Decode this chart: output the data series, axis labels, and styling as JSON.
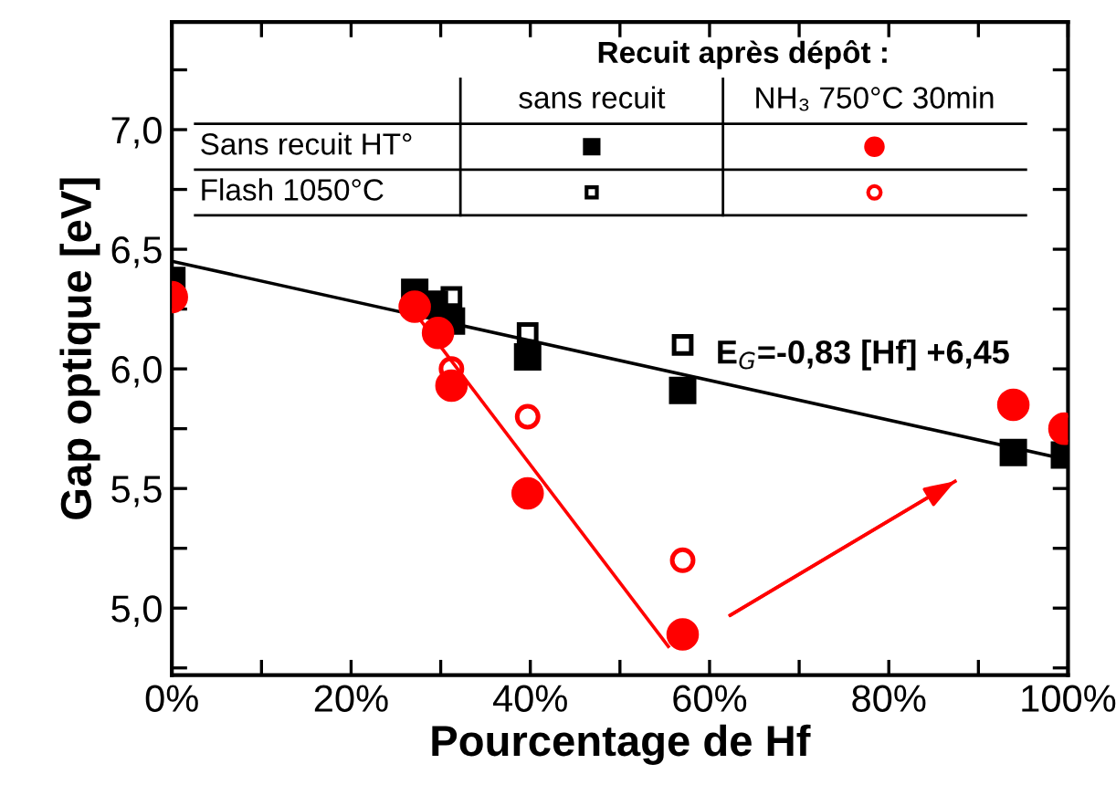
{
  "chart_data": {
    "type": "scatter",
    "xlabel": "Pourcentage de Hf",
    "ylabel": "Gap optique [eV]",
    "legend_title": "Recuit après dépôt :",
    "xlim": [
      0,
      100
    ],
    "xticks": [
      {
        "value": 0,
        "label": "0%"
      },
      {
        "value": 10,
        "label": null
      },
      {
        "value": 20,
        "label": "20%"
      },
      {
        "value": 30,
        "label": null
      },
      {
        "value": 40,
        "label": "40%"
      },
      {
        "value": 50,
        "label": null
      },
      {
        "value": 60,
        "label": "60%"
      },
      {
        "value": 70,
        "label": null
      },
      {
        "value": 80,
        "label": "80%"
      },
      {
        "value": 90,
        "label": null
      },
      {
        "value": 100,
        "label": "100%"
      }
    ],
    "ylim": [
      4.72,
      7.45
    ],
    "yticks": [
      {
        "value": 4.75,
        "label": null
      },
      {
        "value": 5.0,
        "label": "5,0"
      },
      {
        "value": 5.25,
        "label": null
      },
      {
        "value": 5.5,
        "label": "5,5"
      },
      {
        "value": 5.75,
        "label": null
      },
      {
        "value": 6.0,
        "label": "6,0"
      },
      {
        "value": 6.25,
        "label": null
      },
      {
        "value": 6.5,
        "label": "6,5"
      },
      {
        "value": 6.75,
        "label": null
      },
      {
        "value": 7.0,
        "label": "7,0"
      },
      {
        "value": 7.25,
        "label": null
      }
    ],
    "grid": false,
    "series": [
      {
        "marker": "square",
        "color": "#000000",
        "x": [
          0,
          27.1,
          29.3,
          31.2,
          39.7,
          57.0,
          93.9,
          99.6
        ],
        "values": [
          6.37,
          6.32,
          6.27,
          6.2,
          6.05,
          5.91,
          5.65,
          5.64
        ]
      },
      {
        "marker": "square",
        "color": "#000000",
        "x": [
          31.2,
          39.7,
          57.0
        ],
        "values": [
          6.3,
          6.15,
          6.1
        ]
      },
      {
        "marker": "circle",
        "color": "#ff0000",
        "x": [
          0,
          27.1,
          29.7,
          31.2,
          39.7,
          57.0,
          93.9,
          99.6
        ],
        "values": [
          6.3,
          6.26,
          6.15,
          5.93,
          5.48,
          4.89,
          5.85,
          5.75
        ]
      },
      {
        "marker": "circle",
        "color": "#ff0000",
        "x": [
          31.2,
          39.7,
          57.0
        ],
        "values": [
          6.0,
          5.8,
          5.2
        ]
      },
      {
        "type": "line",
        "color": "#000000",
        "x": [
          0,
          100
        ],
        "values": [
          6.45,
          5.62
        ]
      },
      {
        "type": "line",
        "color": "#ff0000",
        "x": [
          27.0,
          55.4
        ],
        "values": [
          6.24,
          4.84
        ]
      },
      {
        "type": "line",
        "color": "#ff0000",
        "x": [
          62.3,
          87.4
        ],
        "values": [
          4.97,
          5.53
        ]
      }
    ],
    "annotations": [
      "sans recuit",
      "NH₃ 750°C 30min",
      "Sans recuit HT°",
      "Flash 1050°C",
      "E$_{G}$=-0,83 [Hf] +6,45"
    ]
  }
}
